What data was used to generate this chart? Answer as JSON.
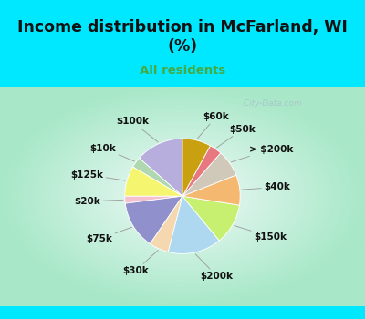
{
  "title": "Income distribution in McFarland, WI\n(%)",
  "subtitle": "All residents",
  "labels": [
    "$100k",
    "$10k",
    "$125k",
    "$20k",
    "$75k",
    "$30k",
    "$200k",
    "$150k",
    "$40k",
    "> $200k",
    "$50k",
    "$60k"
  ],
  "sizes": [
    13.5,
    3.0,
    8.5,
    2.0,
    13.5,
    5.5,
    15.0,
    11.5,
    8.5,
    7.5,
    3.5,
    8.0
  ],
  "colors": [
    "#b8aedd",
    "#b0d8b0",
    "#f5f570",
    "#f5c0d0",
    "#9090cc",
    "#f5d8b0",
    "#add8f0",
    "#c8f070",
    "#f5b870",
    "#d0c8b8",
    "#e87880",
    "#c8a010"
  ],
  "bg_color_top": "#00e8ff",
  "bg_color_chart_edge": "#a8e8c8",
  "bg_color_chart_center": "#f0faf8",
  "title_color": "#111111",
  "subtitle_color": "#44aa44",
  "watermark": "  City-Data.com",
  "startangle": 90,
  "label_fontsize": 7.5,
  "title_fontsize": 12.5
}
